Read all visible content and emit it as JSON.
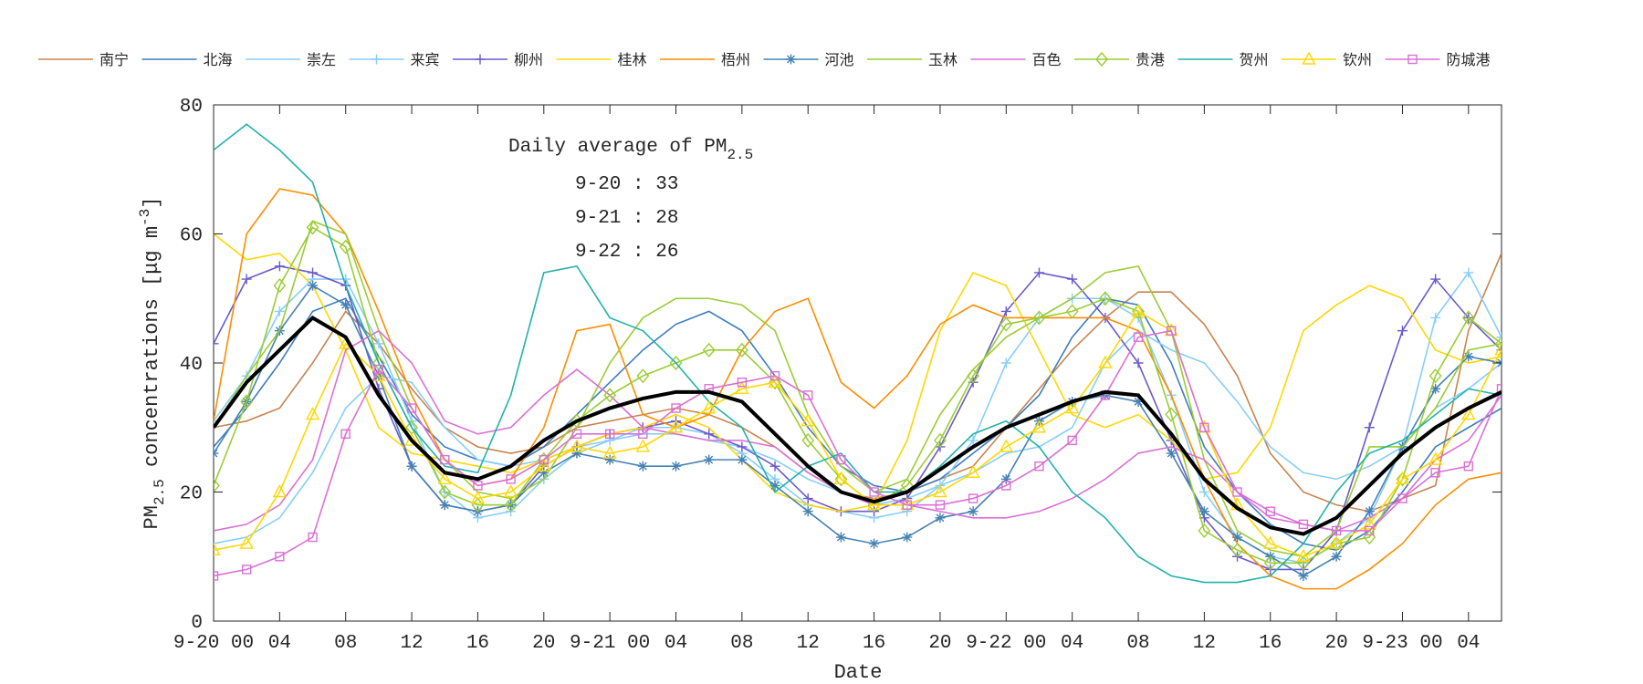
{
  "chart_data": {
    "type": "line",
    "annotation": {
      "title": "Daily average of PM",
      "title_sub": "2.5",
      "lines": [
        "9-20 : 33",
        "9-21 : 28",
        "9-22 : 26"
      ]
    },
    "xlabel": "Date",
    "ylabel": {
      "prefix": "PM",
      "sub": "2.5",
      "middle": " concentrations [μg m",
      "sup": "-3",
      "suffix": "]"
    },
    "xlim": [
      0,
      78
    ],
    "ylim": [
      0,
      80
    ],
    "yticks": [
      0,
      20,
      40,
      60,
      80
    ],
    "xticks": [
      {
        "value": 0,
        "label": "9-20 00"
      },
      {
        "value": 4,
        "label": "04"
      },
      {
        "value": 8,
        "label": "08"
      },
      12,
      16,
      20,
      {
        "value": 24,
        "label": "9-21 00"
      },
      {
        "value": 28,
        "label": "04"
      },
      {
        "value": 32,
        "label": "08"
      },
      {
        "value": 36,
        "label": "12"
      },
      {
        "value": 40,
        "label": "16"
      },
      {
        "value": 44,
        "label": "20"
      },
      {
        "value": 48,
        "label": "9-22 00"
      },
      {
        "value": 52,
        "label": "04"
      },
      {
        "value": 56,
        "label": "08"
      },
      {
        "value": 60,
        "label": "12"
      },
      {
        "value": 64,
        "label": "16"
      },
      {
        "value": 68,
        "label": "20"
      },
      {
        "value": 72,
        "label": "9-23 00"
      },
      {
        "value": 76,
        "label": "04"
      }
    ],
    "grid": false,
    "legend": "top",
    "x": [
      0,
      2,
      4,
      6,
      8,
      10,
      12,
      14,
      16,
      18,
      20,
      22,
      24,
      26,
      28,
      30,
      32,
      34,
      36,
      38,
      40,
      42,
      44,
      46,
      48,
      50,
      52,
      54,
      56,
      58,
      60,
      62,
      64,
      66,
      68,
      70,
      72,
      74,
      76,
      78
    ],
    "mean": {
      "color": "#000000",
      "values": [
        30,
        37,
        42,
        47,
        44,
        35,
        28,
        23,
        22,
        24,
        28,
        31,
        33,
        34.5,
        35.5,
        35.5,
        34,
        29,
        24,
        20,
        18.5,
        20,
        23.5,
        27,
        30,
        32,
        34,
        35.5,
        35,
        29,
        22,
        17.5,
        14.5,
        13.5,
        16,
        21,
        26,
        30,
        33,
        35.5
      ]
    },
    "series": [
      {
        "name": "南宁",
        "color": "#c8844e",
        "marker": "none",
        "values": [
          30,
          31,
          33,
          40,
          48,
          43,
          36,
          30,
          27,
          26,
          27,
          30,
          31,
          32,
          33,
          32,
          30,
          27,
          23,
          20,
          19,
          20,
          22,
          24,
          30,
          36,
          42,
          47,
          51,
          51,
          46,
          38,
          26,
          20,
          18,
          17,
          19,
          21,
          45,
          57
        ]
      },
      {
        "name": "北海",
        "color": "#3d7cc0",
        "marker": "none",
        "values": [
          27,
          33,
          40,
          48,
          50,
          41,
          32,
          27,
          25,
          24,
          27,
          32,
          37,
          42,
          46,
          48,
          45,
          38,
          30,
          24,
          21,
          20,
          22,
          26,
          30,
          35,
          44,
          50,
          49,
          40,
          27,
          20,
          15,
          12,
          11,
          14,
          20,
          27,
          30,
          33
        ]
      },
      {
        "name": "崇左",
        "color": "#87cefa",
        "marker": "none",
        "values": [
          12,
          13,
          16,
          23,
          33,
          38,
          37,
          30,
          25,
          24,
          25,
          27,
          28,
          29,
          29,
          28,
          27,
          25,
          22,
          20,
          18,
          19,
          21,
          23,
          26,
          27,
          30,
          40,
          45,
          42,
          40,
          34,
          27,
          23,
          22,
          24,
          27,
          33,
          36,
          40
        ]
      },
      {
        "name": "来宾",
        "color": "#87cefa",
        "marker": "plus",
        "values": [
          31,
          38,
          48,
          53,
          53,
          43,
          31,
          20,
          16,
          17,
          22,
          26,
          28,
          30,
          30,
          29,
          26,
          22,
          18,
          17,
          16,
          17,
          21,
          28,
          40,
          47,
          50,
          50,
          47,
          35,
          20,
          13,
          10,
          9,
          12,
          16,
          27,
          47,
          54,
          44
        ]
      },
      {
        "name": "柳州",
        "color": "#6a5acd",
        "marker": "plus",
        "values": [
          43,
          53,
          55,
          54,
          52,
          36,
          24,
          18,
          17,
          18,
          24,
          27,
          29,
          30,
          31,
          29,
          27,
          24,
          19,
          17,
          17,
          19,
          27,
          37,
          48,
          54,
          53,
          47,
          40,
          28,
          16,
          10,
          8,
          8,
          14,
          30,
          45,
          53,
          47,
          42
        ]
      },
      {
        "name": "桂林",
        "color": "#ffd700",
        "marker": "none",
        "values": [
          60,
          56,
          57,
          52,
          42,
          30,
          26,
          25,
          24,
          23,
          25,
          27,
          29,
          30,
          32,
          30,
          25,
          20,
          18,
          17,
          18,
          28,
          45,
          54,
          52,
          42,
          32,
          30,
          32,
          28,
          22,
          23,
          30,
          45,
          49,
          52,
          50,
          42,
          40,
          41
        ]
      },
      {
        "name": "梧州",
        "color": "#ff8c00",
        "marker": "none",
        "values": [
          31,
          60,
          67,
          66,
          60,
          48,
          35,
          25,
          21,
          22,
          30,
          45,
          46,
          32,
          30,
          32,
          42,
          48,
          50,
          37,
          33,
          38,
          46,
          49,
          47,
          47,
          47,
          47,
          45,
          35,
          22,
          12,
          7,
          5,
          5,
          8,
          12,
          18,
          22,
          23
        ]
      },
      {
        "name": "河池",
        "color": "#4682b4",
        "marker": "star",
        "values": [
          26,
          34,
          45,
          52,
          49,
          38,
          24,
          18,
          17,
          18,
          23,
          26,
          25,
          24,
          24,
          25,
          25,
          21,
          17,
          13,
          12,
          13,
          16,
          17,
          22,
          31,
          34,
          35,
          34,
          26,
          17,
          13,
          10,
          7,
          10,
          17,
          27,
          36,
          41,
          40
        ]
      },
      {
        "name": "玉林",
        "color": "#9acd32",
        "marker": "none",
        "values": [
          30,
          38,
          45,
          62,
          60,
          45,
          33,
          25,
          20,
          19,
          22,
          30,
          40,
          47,
          50,
          50,
          49,
          45,
          32,
          24,
          20,
          22,
          32,
          39,
          44,
          47,
          50,
          54,
          55,
          45,
          25,
          14,
          11,
          10,
          14,
          27,
          27,
          33,
          42,
          43
        ]
      },
      {
        "name": "百色",
        "color": "#da70d6",
        "marker": "none",
        "values": [
          14,
          15,
          18,
          25,
          42,
          45,
          40,
          31,
          29,
          30,
          35,
          39,
          35,
          30,
          29,
          28,
          28,
          27,
          23,
          20,
          18,
          18,
          17,
          16,
          16,
          17,
          19,
          22,
          26,
          27,
          25,
          20,
          16,
          15,
          14,
          16,
          19,
          25,
          28,
          35
        ]
      },
      {
        "name": "贵港",
        "color": "#9acd32",
        "marker": "diamond",
        "values": [
          21,
          34,
          52,
          61,
          58,
          40,
          30,
          20,
          18,
          18,
          25,
          31,
          35,
          38,
          40,
          42,
          42,
          37,
          28,
          22,
          18,
          21,
          28,
          38,
          46,
          47,
          48,
          50,
          48,
          32,
          14,
          11,
          9,
          9,
          12,
          13,
          22,
          38,
          47,
          43
        ]
      },
      {
        "name": "贺州",
        "color": "#20b2aa",
        "marker": "none",
        "values": [
          73,
          77,
          73,
          68,
          52,
          40,
          30,
          24,
          23,
          35,
          54,
          55,
          47,
          45,
          40,
          34,
          30,
          20,
          24,
          26,
          20,
          20,
          24,
          29,
          31,
          27,
          20,
          16,
          10,
          7,
          6,
          6,
          7,
          12,
          20,
          26,
          28,
          32,
          36,
          35
        ]
      },
      {
        "name": "钦州",
        "color": "#ffd700",
        "marker": "triangle",
        "values": [
          11,
          12,
          20,
          32,
          43,
          38,
          28,
          22,
          19,
          20,
          24,
          27,
          26,
          27,
          30,
          33,
          36,
          37,
          31,
          22,
          18,
          18,
          20,
          23,
          27,
          30,
          33,
          40,
          48,
          45,
          30,
          18,
          12,
          10,
          12,
          15,
          22,
          25,
          32,
          42
        ]
      },
      {
        "name": "防城港",
        "color": "#da70d6",
        "marker": "square",
        "values": [
          7,
          8,
          10,
          13,
          29,
          39,
          33,
          25,
          21,
          22,
          25,
          29,
          29,
          29,
          33,
          36,
          37,
          38,
          35,
          25,
          20,
          18,
          18,
          19,
          21,
          24,
          28,
          35,
          44,
          45,
          30,
          20,
          17,
          15,
          14,
          14,
          19,
          23,
          24,
          36
        ]
      }
    ]
  }
}
